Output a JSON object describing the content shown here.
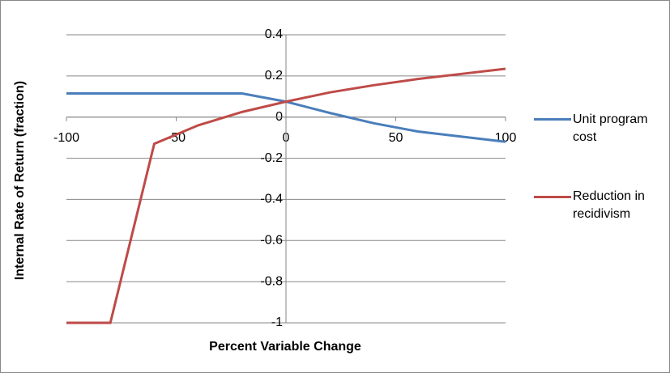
{
  "chart_data": {
    "type": "line",
    "x_label": "Percent Variable Change",
    "y_label": "Internal Rate of Return (fraction)",
    "x": [
      -100,
      -80,
      -60,
      -40,
      -20,
      0,
      20,
      40,
      60,
      80,
      100
    ],
    "series": [
      {
        "name": "Unit program cost",
        "color": "#4a7ebb",
        "values": [
          0.115,
          0.115,
          0.115,
          0.115,
          0.115,
          0.075,
          0.02,
          -0.03,
          -0.07,
          -0.095,
          -0.12
        ]
      },
      {
        "name": "Reduction in recidivism",
        "color": "#be4b48",
        "values": [
          -1,
          -1,
          -0.13,
          -0.04,
          0.025,
          0.075,
          0.12,
          0.155,
          0.185,
          0.21,
          0.235
        ]
      }
    ],
    "xlim": [
      -100,
      100
    ],
    "xticks": [
      -100,
      -50,
      0,
      50,
      100
    ],
    "ylim": [
      -1,
      0.4
    ],
    "yticks": [
      0.4,
      0.2,
      0,
      -0.2,
      -0.4,
      -0.6,
      -0.8,
      -1
    ],
    "grid": true
  }
}
